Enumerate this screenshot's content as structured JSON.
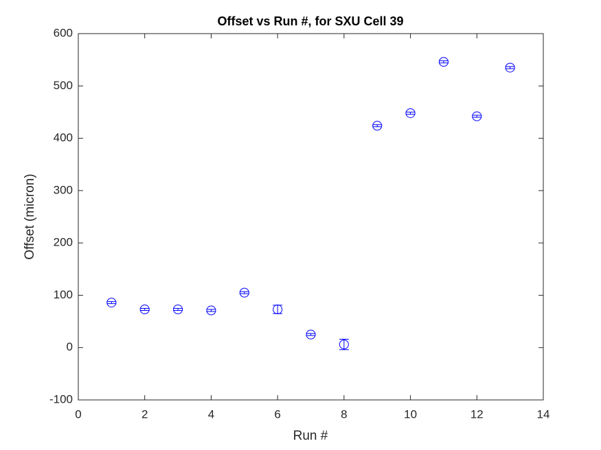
{
  "chart_data": {
    "type": "errorbar",
    "title": "Offset vs Run #, for SXU Cell 39",
    "x_label": "Run #",
    "y_label": "Offset (micron)",
    "x": [
      1,
      2,
      3,
      4,
      5,
      6,
      7,
      8,
      9,
      10,
      11,
      12,
      13
    ],
    "series": [
      {
        "name": "Offset",
        "color": "#0000ff",
        "values": [
          86,
          73,
          73,
          71,
          105,
          73,
          25,
          6,
          424,
          448,
          546,
          442,
          535
        ],
        "errors": [
          2,
          2,
          2,
          2,
          2,
          8,
          2,
          10,
          2,
          2,
          2,
          2,
          2
        ]
      }
    ],
    "xlim": [
      0,
      14
    ],
    "xticks": [
      0,
      2,
      4,
      6,
      8,
      10,
      12,
      14
    ],
    "ylim": [
      -100,
      600
    ],
    "yticks": [
      -100,
      0,
      100,
      200,
      300,
      400,
      500,
      600
    ],
    "grid": false
  }
}
